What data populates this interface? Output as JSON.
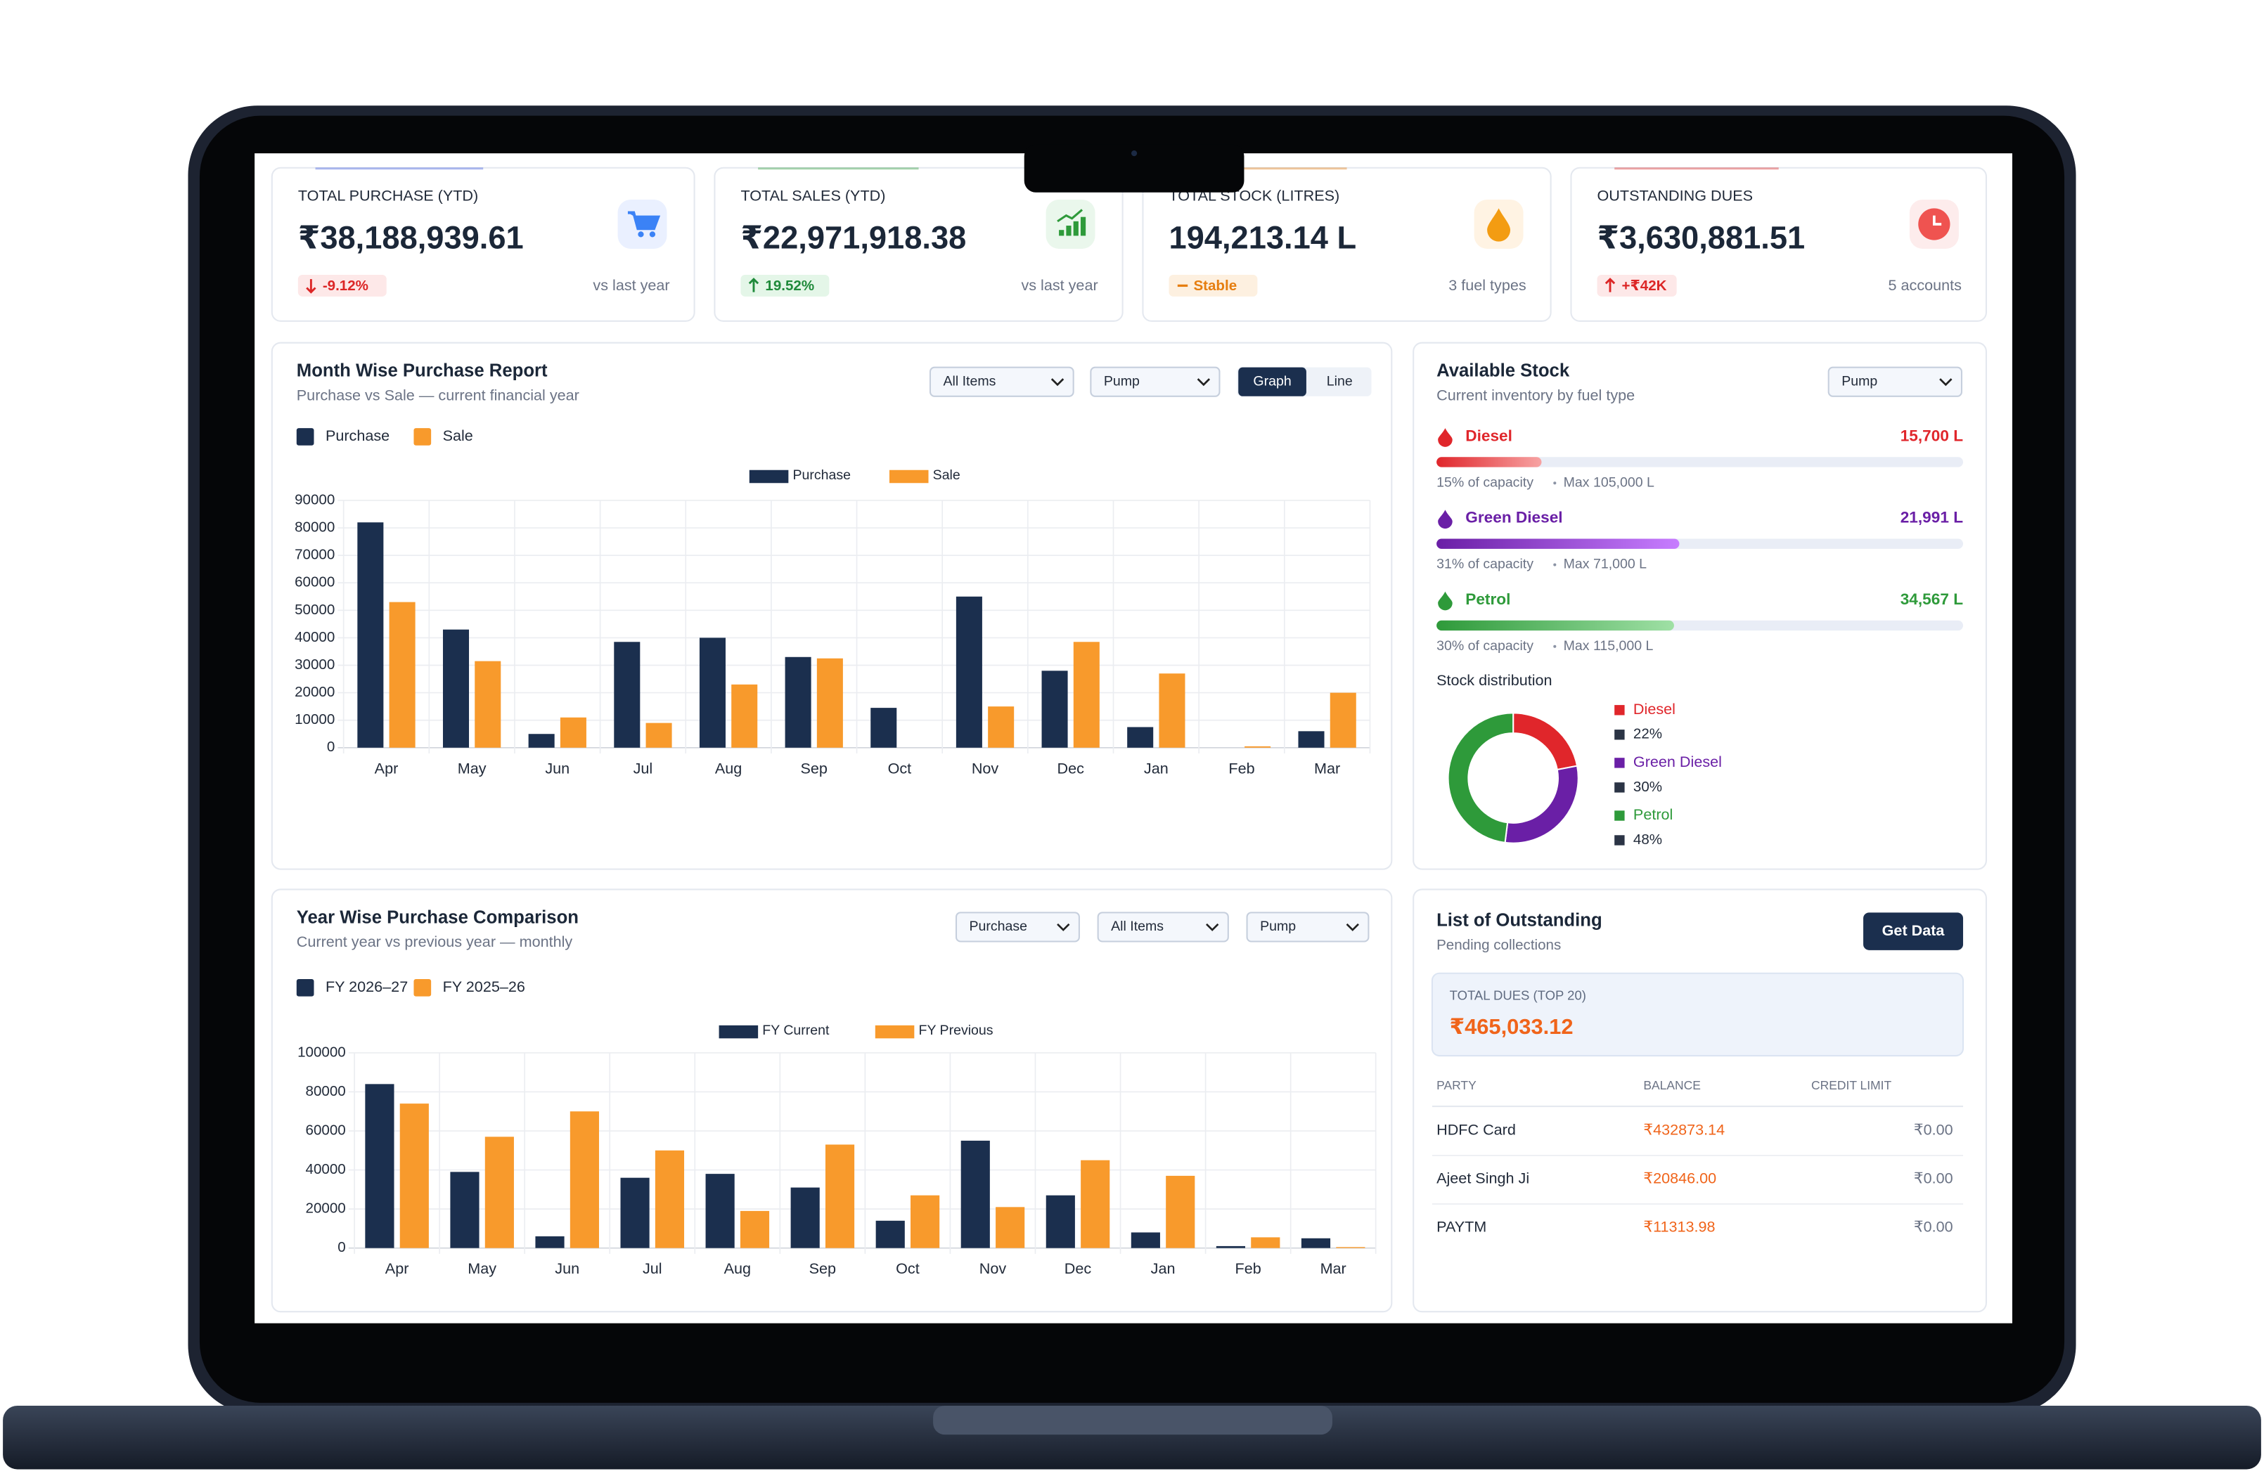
{
  "kpis": [
    {
      "title": "TOTAL PURCHASE (YTD)",
      "value": "₹38,188,939.61",
      "change": "-9.12%",
      "note": "vs last year"
    },
    {
      "title": "TOTAL SALES (YTD)",
      "value": "₹22,971,918.38",
      "change": "19.52%",
      "note": "vs last year"
    },
    {
      "title": "TOTAL STOCK (LITRES)",
      "value": "194,213.14 L",
      "change": "Stable",
      "note": "3 fuel types"
    },
    {
      "title": "OUTSTANDING DUES",
      "value": "₹3,630,881.51",
      "change": "+₹42K",
      "note": "5 accounts"
    }
  ],
  "chart_data": [
    {
      "type": "bar",
      "title": "Month Wise Purchase Report",
      "subtitle": "Purchase vs Sale — current financial year",
      "controls": [
        "All Items",
        "Pump"
      ],
      "toggle": [
        "Graph",
        "Line"
      ],
      "categories": [
        "Apr",
        "May",
        "Jun",
        "Jul",
        "Aug",
        "Sep",
        "Oct",
        "Nov",
        "Dec",
        "Jan",
        "Feb",
        "Mar"
      ],
      "series": [
        {
          "name": "Purchase",
          "color": "#1b2f4e",
          "values": [
            82000,
            43000,
            5000,
            38500,
            40000,
            33000,
            14500,
            55000,
            28000,
            7500,
            0,
            6000
          ]
        },
        {
          "name": "Sale",
          "color": "#f89a2c",
          "values": [
            53000,
            31500,
            11000,
            9000,
            23000,
            32500,
            0,
            15000,
            38500,
            27000,
            500,
            20000
          ]
        }
      ],
      "ylim": [
        0,
        90000
      ],
      "yticks": [
        0,
        10000,
        20000,
        30000,
        40000,
        50000,
        60000,
        70000,
        80000,
        90000
      ],
      "grid": true
    },
    {
      "type": "bar",
      "title": "Year Wise Purchase Comparison",
      "subtitle": "Current year vs previous year — monthly",
      "controls": [
        "Purchase",
        "All Items",
        "Pump"
      ],
      "legend_labels": [
        "FY 2026–27",
        "FY 2025–26"
      ],
      "categories": [
        "Apr",
        "May",
        "Jun",
        "Jul",
        "Aug",
        "Sep",
        "Oct",
        "Nov",
        "Dec",
        "Jan",
        "Feb",
        "Mar"
      ],
      "series": [
        {
          "name": "FY Current",
          "color": "#1b2f4e",
          "values": [
            84000,
            39000,
            6000,
            36000,
            38000,
            31000,
            14000,
            55000,
            27000,
            8000,
            1000,
            5000
          ]
        },
        {
          "name": "FY Previous",
          "color": "#f89a2c",
          "values": [
            74000,
            57000,
            70000,
            50000,
            19000,
            53000,
            27000,
            21000,
            45000,
            37000,
            5500,
            500
          ]
        }
      ],
      "ylim": [
        0,
        100000
      ],
      "yticks": [
        0,
        20000,
        40000,
        60000,
        80000,
        100000
      ],
      "grid": true
    },
    {
      "type": "pie",
      "title": "Stock distribution",
      "categories": [
        "Diesel",
        "Green Diesel",
        "Petrol"
      ],
      "values": [
        22,
        30,
        48
      ],
      "value_labels": [
        "22%",
        "30%",
        "48%"
      ],
      "colors": [
        "#e0262b",
        "#6a1fa6",
        "#2e9a3a"
      ]
    }
  ],
  "stock": {
    "title": "Available Stock",
    "subtitle": "Current inventory by fuel type",
    "filter": "Pump",
    "items": [
      {
        "name": "Diesel",
        "amount": "15,700 L",
        "capacity": {
          "value": 15,
          "label": "15% of capacity"
        },
        "max": "Max 105,000 L",
        "color": "#e0262b"
      },
      {
        "name": "Green Diesel",
        "amount": "21,991 L",
        "capacity": {
          "value": 31,
          "label": "31% of capacity"
        },
        "max": "Max 71,000 L",
        "color": "#6a1fa6"
      },
      {
        "name": "Petrol",
        "amount": "34,567 L",
        "capacity": {
          "value": 30,
          "label": "30% of capacity"
        },
        "max": "Max 115,000 L",
        "color": "#2e9a3a"
      }
    ]
  },
  "outstanding": {
    "title": "List of Outstanding",
    "subtitle": "Pending collections",
    "button": "Get Data",
    "total_label": "TOTAL DUES (TOP 20)",
    "total": "₹465,033.12",
    "columns": [
      "PARTY",
      "BALANCE",
      "CREDIT LIMIT"
    ],
    "rows": [
      [
        "HDFC Card",
        "₹432873.14",
        "₹0.00"
      ],
      [
        "Ajeet Singh Ji",
        "₹20846.00",
        "₹0.00"
      ],
      [
        "PAYTM",
        "₹11313.98",
        "₹0.00"
      ]
    ]
  }
}
